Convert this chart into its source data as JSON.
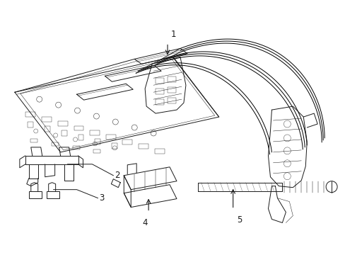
{
  "background_color": "#ffffff",
  "line_color": "#1a1a1a",
  "lw": 0.7,
  "fig_width": 4.89,
  "fig_height": 3.6,
  "dpi": 100
}
